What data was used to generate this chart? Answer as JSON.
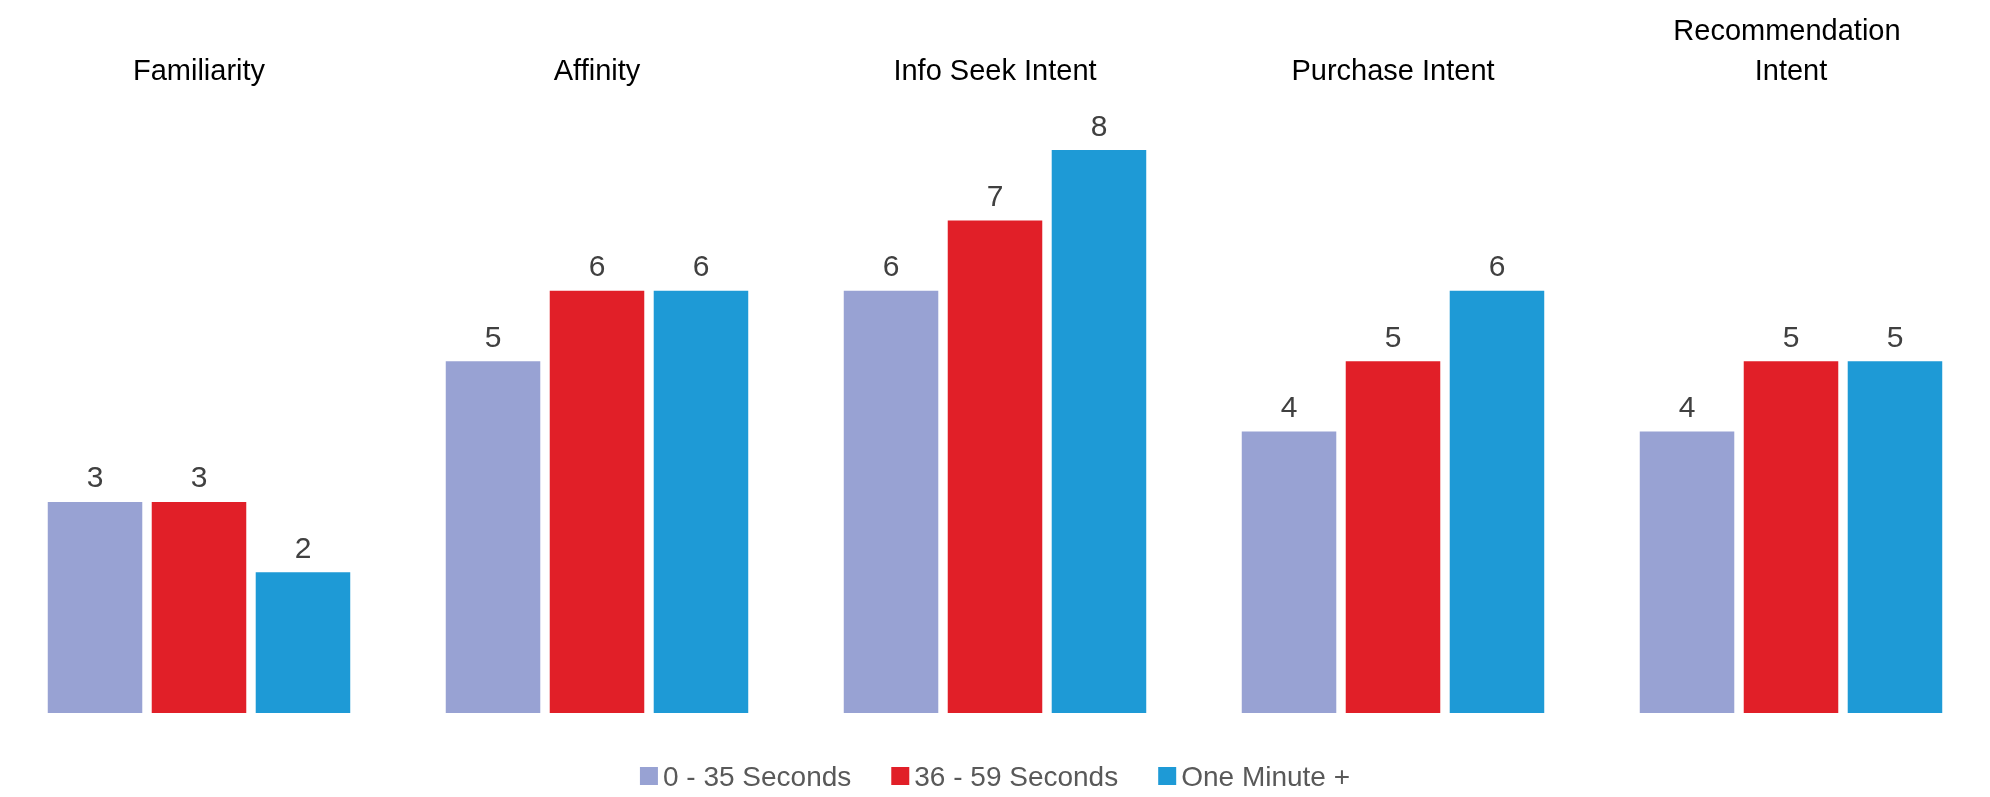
{
  "chart_data": {
    "type": "bar",
    "categories": [
      "Familiarity",
      "Affinity",
      "Info Seek Intent",
      "Purchase Intent",
      "Recommendation Intent"
    ],
    "series": [
      {
        "name": "0 - 35 Seconds",
        "color": "#98a2d3",
        "values": [
          3,
          5,
          6,
          4,
          4
        ]
      },
      {
        "name": "36 - 59 Seconds",
        "color": "#e11f28",
        "values": [
          3,
          6,
          7,
          5,
          5
        ]
      },
      {
        "name": "One Minute +",
        "color": "#1e9ad6",
        "values": [
          2,
          6,
          8,
          6,
          5
        ]
      }
    ],
    "data_labels": true,
    "legend": "bottom"
  }
}
